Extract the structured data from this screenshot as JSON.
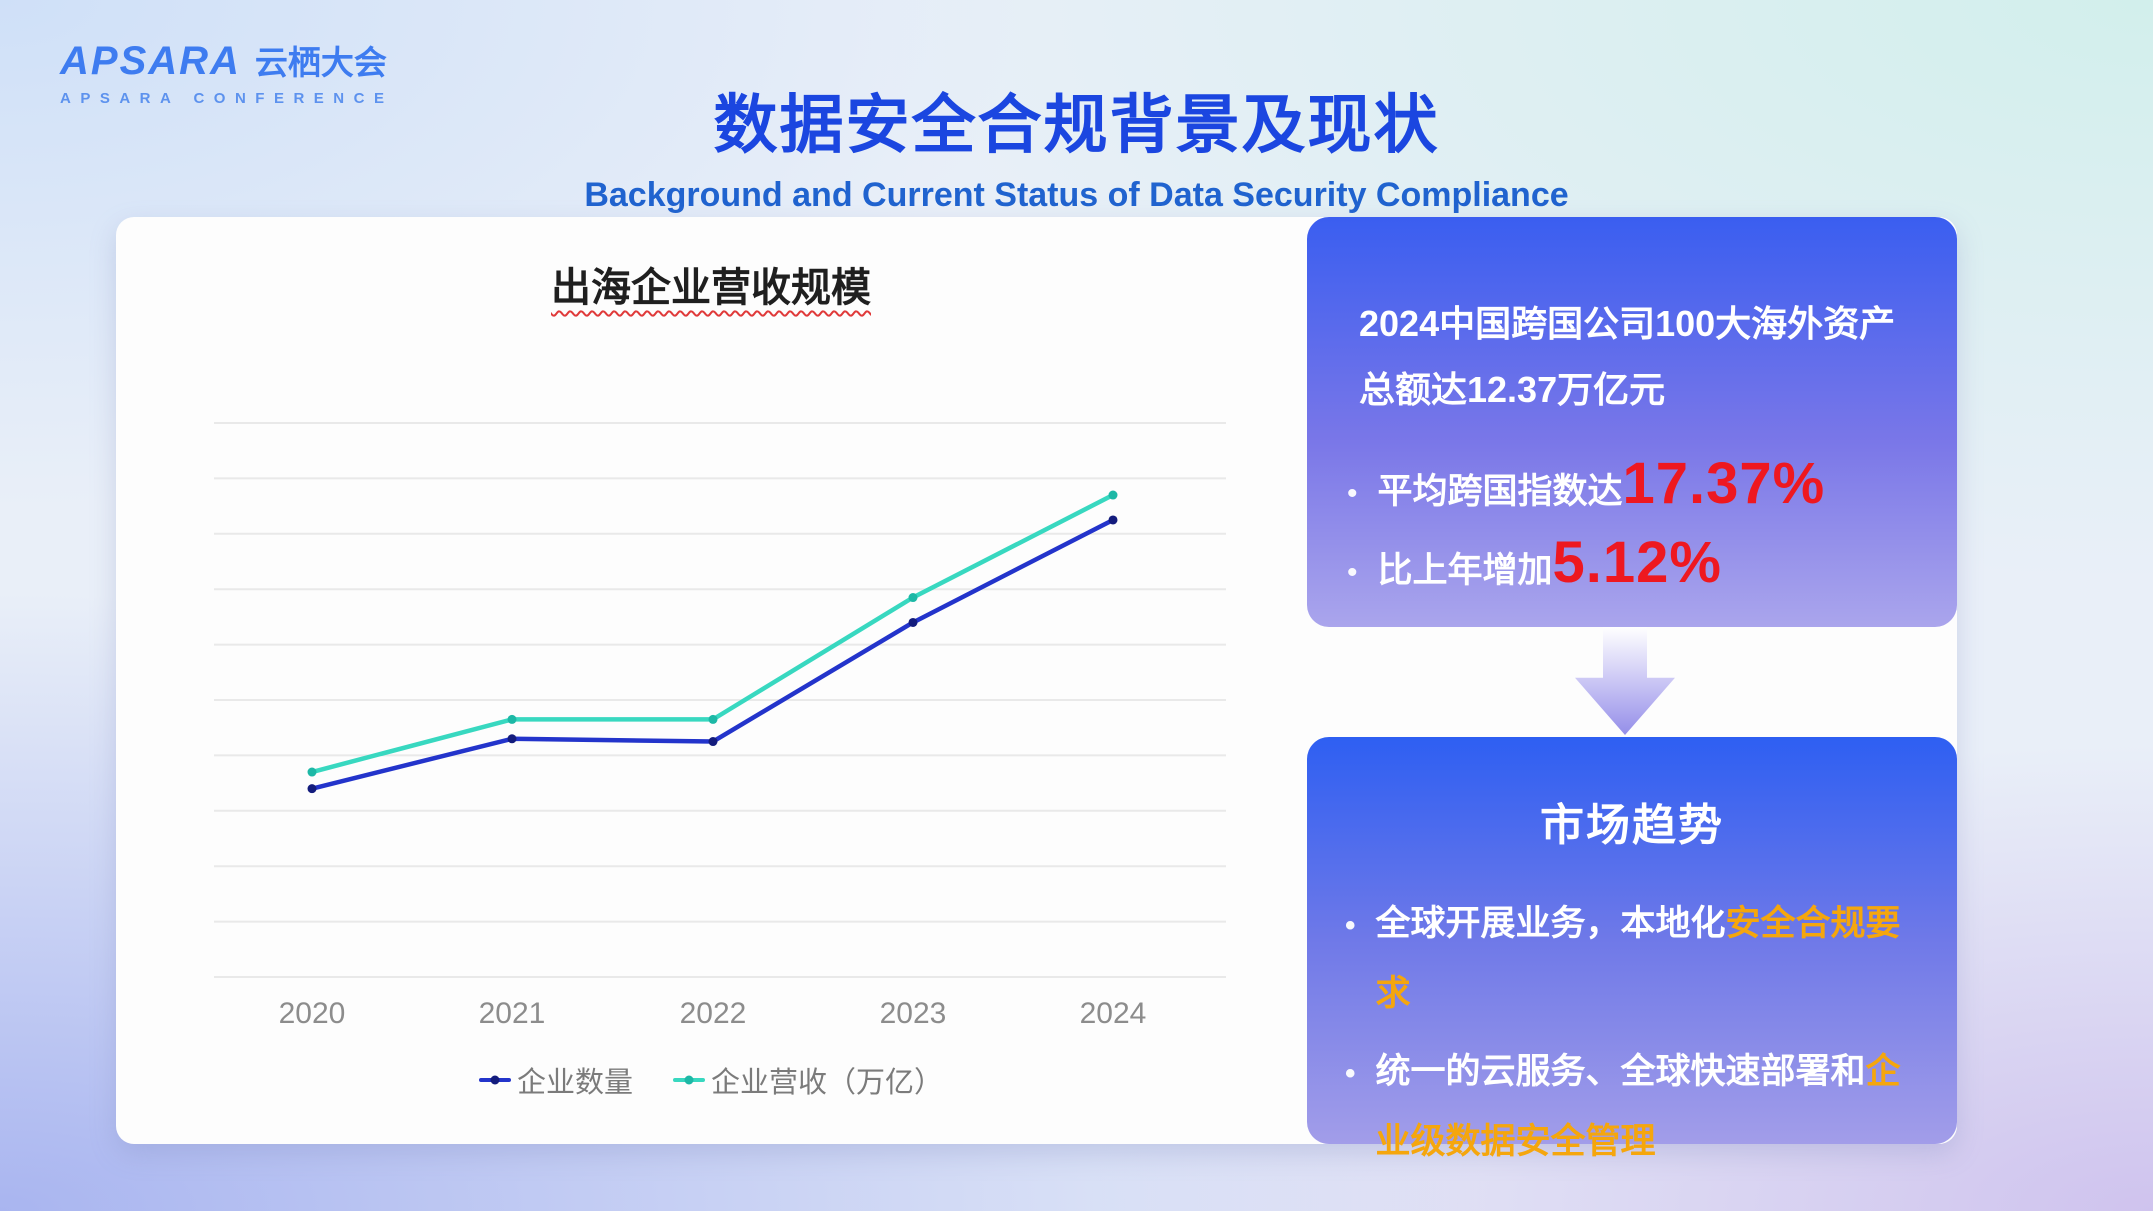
{
  "logo": {
    "brand": "APSARA",
    "brand_cn": "云栖大会",
    "subtitle": "APSARA CONFERENCE"
  },
  "header": {
    "title": "数据安全合规背景及现状",
    "subtitle": "Background and Current Status of Data Security Compliance"
  },
  "chart_data": {
    "type": "line",
    "title": "出海企业营收规模",
    "categories": [
      "2020",
      "2021",
      "2022",
      "2023",
      "2024"
    ],
    "series": [
      {
        "name": "企业数量",
        "color": "#2334cb",
        "marker_color": "#131c7d",
        "values": [
          3.4,
          4.3,
          4.25,
          6.4,
          8.25
        ]
      },
      {
        "name": "企业营收（万亿）",
        "color": "#38d8c0",
        "marker_color": "#1db8a6",
        "values": [
          3.7,
          4.65,
          4.65,
          6.85,
          8.7
        ]
      }
    ],
    "xlabel": "",
    "ylabel": "",
    "ylim": [
      0,
      10
    ],
    "gridlines": 11,
    "y_axis_labels_visible": false,
    "legend_position": "bottom",
    "note": "values estimated from gridlines; 1 unit per gridline interval, no y-axis tick labels shown"
  },
  "stats_card": {
    "paragraph": "2024中国跨国公司100大海外资产总额达12.37万亿元",
    "bullet_glyph": "•",
    "bullets": [
      {
        "label": "平均跨国指数达",
        "value": "17.37%"
      },
      {
        "label": "比上年增加",
        "value": "5.12%"
      }
    ]
  },
  "trends_card": {
    "title": "市场趋势",
    "bullet_glyph": "•",
    "bullets": [
      {
        "pre": "全球开展业务，本地化",
        "highlight": "安全合规要求"
      },
      {
        "pre": "统一的云服务、全球快速部署和",
        "highlight": "企业级数据安全管理"
      }
    ]
  },
  "colors": {
    "logo-blue": "#3e7cf0",
    "title-blue": "#1b46e0",
    "subtitle-blue": "#2063cf",
    "chart-title": "#1f1f1f",
    "wavy-red": "#e03a3a",
    "grid-gray": "#e9e9e9",
    "tick-gray": "#8c8c8c",
    "legend-gray": "#7b7b7b",
    "red": "#ee1820",
    "orange": "#f5a60d",
    "card1-top": "#3a5ef0",
    "card1-bottom": "#aaa5ec",
    "card2-top": "#2e5ff2",
    "card2-bottom": "#a29de9"
  }
}
